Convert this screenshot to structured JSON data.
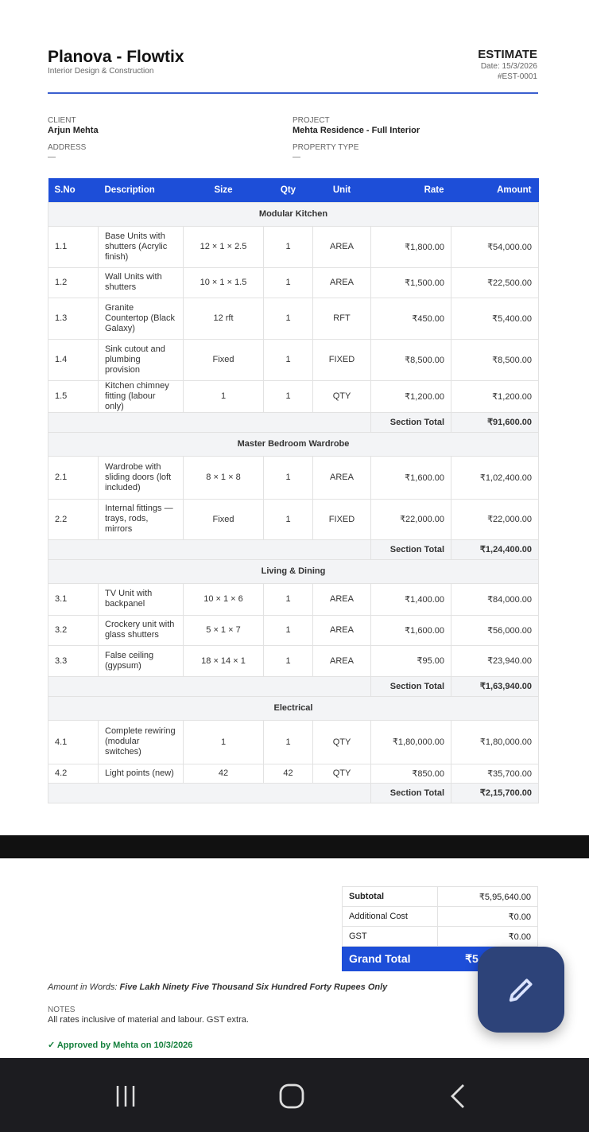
{
  "header": {
    "brand": "Planova - Flowtix",
    "tagline": "Interior Design & Construction",
    "doc_type": "ESTIMATE",
    "date": "Date: 15/3/2026",
    "number": "#EST-0001"
  },
  "info": {
    "client_label": "CLIENT",
    "client": "Arjun Mehta",
    "address_label": "ADDRESS",
    "address": "—",
    "project_label": "PROJECT",
    "project": "Mehta Residence - Full Interior",
    "property_label": "PROPERTY TYPE",
    "property": "—"
  },
  "table": {
    "headers": [
      "S.No",
      "Description",
      "Size",
      "Qty",
      "Unit",
      "Rate",
      "Amount"
    ],
    "section_total_label": "Section Total",
    "sections": [
      {
        "name": "Modular Kitchen",
        "total": "₹91,600.00",
        "rows": [
          [
            "1.1",
            "Base Units with shutters (Acrylic finish)",
            "12 × 1 × 2.5",
            "1",
            "AREA",
            "₹1,800.00",
            "₹54,000.00"
          ],
          [
            "1.2",
            "Wall Units with shutters",
            "10 × 1 × 1.5",
            "1",
            "AREA",
            "₹1,500.00",
            "₹22,500.00"
          ],
          [
            "1.3",
            "Granite Countertop (Black Galaxy)",
            "12 rft",
            "1",
            "RFT",
            "₹450.00",
            "₹5,400.00"
          ],
          [
            "1.4",
            "Sink cutout and plumbing provision",
            "Fixed",
            "1",
            "FIXED",
            "₹8,500.00",
            "₹8,500.00"
          ],
          [
            "1.5",
            "Kitchen chimney fitting (labour only)",
            "1",
            "1",
            "QTY",
            "₹1,200.00",
            "₹1,200.00"
          ]
        ]
      },
      {
        "name": "Master Bedroom Wardrobe",
        "total": "₹1,24,400.00",
        "rows": [
          [
            "2.1",
            "Wardrobe with sliding doors (loft included)",
            "8 × 1 × 8",
            "1",
            "AREA",
            "₹1,600.00",
            "₹1,02,400.00"
          ],
          [
            "2.2",
            "Internal fittings — trays, rods, mirrors",
            "Fixed",
            "1",
            "FIXED",
            "₹22,000.00",
            "₹22,000.00"
          ]
        ]
      },
      {
        "name": "Living & Dining",
        "total": "₹1,63,940.00",
        "rows": [
          [
            "3.1",
            "TV Unit with backpanel",
            "10 × 1 × 6",
            "1",
            "AREA",
            "₹1,400.00",
            "₹84,000.00"
          ],
          [
            "3.2",
            "Crockery unit with glass shutters",
            "5 × 1 × 7",
            "1",
            "AREA",
            "₹1,600.00",
            "₹56,000.00"
          ],
          [
            "3.3",
            "False ceiling (gypsum)",
            "18 × 14 × 1",
            "1",
            "AREA",
            "₹95.00",
            "₹23,940.00"
          ]
        ]
      },
      {
        "name": "Electrical",
        "total": "₹2,15,700.00",
        "rows": [
          [
            "4.1",
            "Complete rewiring (modular switches)",
            "1",
            "1",
            "QTY",
            "₹1,80,000.00",
            "₹1,80,000.00"
          ],
          [
            "4.2",
            "Light points (new)",
            "42",
            "42",
            "QTY",
            "₹850.00",
            "₹35,700.00"
          ]
        ]
      }
    ]
  },
  "totals": {
    "subtotal_label": "Subtotal",
    "subtotal": "₹5,95,640.00",
    "additional_label": "Additional Cost",
    "additional": "₹0.00",
    "gst_label": "GST",
    "gst": "₹0.00",
    "grand_label": "Grand Total",
    "grand": "₹5,95,640.00"
  },
  "words_label": "Amount in Words:",
  "words": "Five Lakh Ninety Five Thousand Six Hundred Forty Rupees Only",
  "notes_label": "NOTES",
  "notes": "All rates inclusive of material and labour. GST extra.",
  "approval": "✓ Approved by Mehta on 10/3/2026",
  "colors": {
    "accent": "#1d4ed8",
    "fab": "#2d4379",
    "approved": "#15803d"
  },
  "icons": {
    "fab": "pencil-icon",
    "nav": [
      "recent-apps-icon",
      "home-icon",
      "back-icon"
    ]
  }
}
